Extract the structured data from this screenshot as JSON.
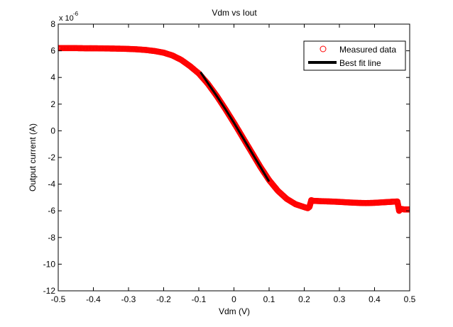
{
  "chart_data": {
    "type": "scatter",
    "title": "Vdm vs Iout",
    "xlabel": "Vdm (V)",
    "ylabel": "Output current (A)",
    "y_exponent_base": "x 10",
    "y_exponent_power": "-6",
    "xlim": [
      -0.5,
      0.5
    ],
    "ylim": [
      -12,
      8
    ],
    "x_ticks": [
      -0.5,
      -0.4,
      -0.3,
      -0.2,
      -0.1,
      0,
      0.1,
      0.2,
      0.3,
      0.4,
      0.5
    ],
    "x_tick_labels": [
      "-0.5",
      "-0.4",
      "-0.3",
      "-0.2",
      "-0.1",
      "0",
      "0.1",
      "0.2",
      "0.3",
      "0.4",
      "0.5"
    ],
    "y_ticks": [
      -12,
      -10,
      -8,
      -6,
      -4,
      -2,
      0,
      2,
      4,
      6,
      8
    ],
    "y_tick_labels": [
      "-12",
      "-10",
      "-8",
      "-6",
      "-4",
      "-2",
      "0",
      "2",
      "4",
      "6",
      "8"
    ],
    "grid": false,
    "legend_position": "top-right",
    "series": [
      {
        "name": "Measured data",
        "color": "#ff0000",
        "marker": "circle-open",
        "points": [
          [
            -0.5,
            6.2
          ],
          [
            -0.475,
            6.2
          ],
          [
            -0.45,
            6.2
          ],
          [
            -0.425,
            6.19
          ],
          [
            -0.4,
            6.19
          ],
          [
            -0.375,
            6.18
          ],
          [
            -0.35,
            6.17
          ],
          [
            -0.325,
            6.16
          ],
          [
            -0.3,
            6.14
          ],
          [
            -0.275,
            6.11
          ],
          [
            -0.25,
            6.06
          ],
          [
            -0.225,
            5.98
          ],
          [
            -0.2,
            5.86
          ],
          [
            -0.175,
            5.65
          ],
          [
            -0.15,
            5.32
          ],
          [
            -0.125,
            4.85
          ],
          [
            -0.1,
            4.3
          ],
          [
            -0.075,
            3.55
          ],
          [
            -0.05,
            2.65
          ],
          [
            -0.025,
            1.65
          ],
          [
            0,
            0.6
          ],
          [
            0.025,
            -0.5
          ],
          [
            0.05,
            -1.6
          ],
          [
            0.075,
            -2.7
          ],
          [
            0.1,
            -3.7
          ],
          [
            0.125,
            -4.5
          ],
          [
            0.15,
            -5.1
          ],
          [
            0.175,
            -5.5
          ],
          [
            0.2,
            -5.72
          ],
          [
            0.21,
            -5.8
          ],
          [
            0.215,
            -5.7
          ],
          [
            0.22,
            -5.2
          ],
          [
            0.225,
            -5.25
          ],
          [
            0.25,
            -5.28
          ],
          [
            0.275,
            -5.3
          ],
          [
            0.3,
            -5.33
          ],
          [
            0.325,
            -5.37
          ],
          [
            0.35,
            -5.4
          ],
          [
            0.375,
            -5.42
          ],
          [
            0.4,
            -5.4
          ],
          [
            0.425,
            -5.36
          ],
          [
            0.45,
            -5.32
          ],
          [
            0.465,
            -5.3
          ],
          [
            0.47,
            -6.0
          ],
          [
            0.475,
            -5.85
          ],
          [
            0.485,
            -5.9
          ],
          [
            0.5,
            -5.9
          ]
        ]
      },
      {
        "name": "Best fit line",
        "color": "#000000",
        "marker": "line",
        "points": [
          [
            -0.095,
            4.4
          ],
          [
            -0.075,
            3.6
          ],
          [
            -0.05,
            2.65
          ],
          [
            -0.025,
            1.65
          ],
          [
            0,
            0.6
          ],
          [
            0.025,
            -0.5
          ],
          [
            0.05,
            -1.6
          ],
          [
            0.075,
            -2.7
          ],
          [
            0.1,
            -3.8
          ]
        ]
      }
    ]
  }
}
